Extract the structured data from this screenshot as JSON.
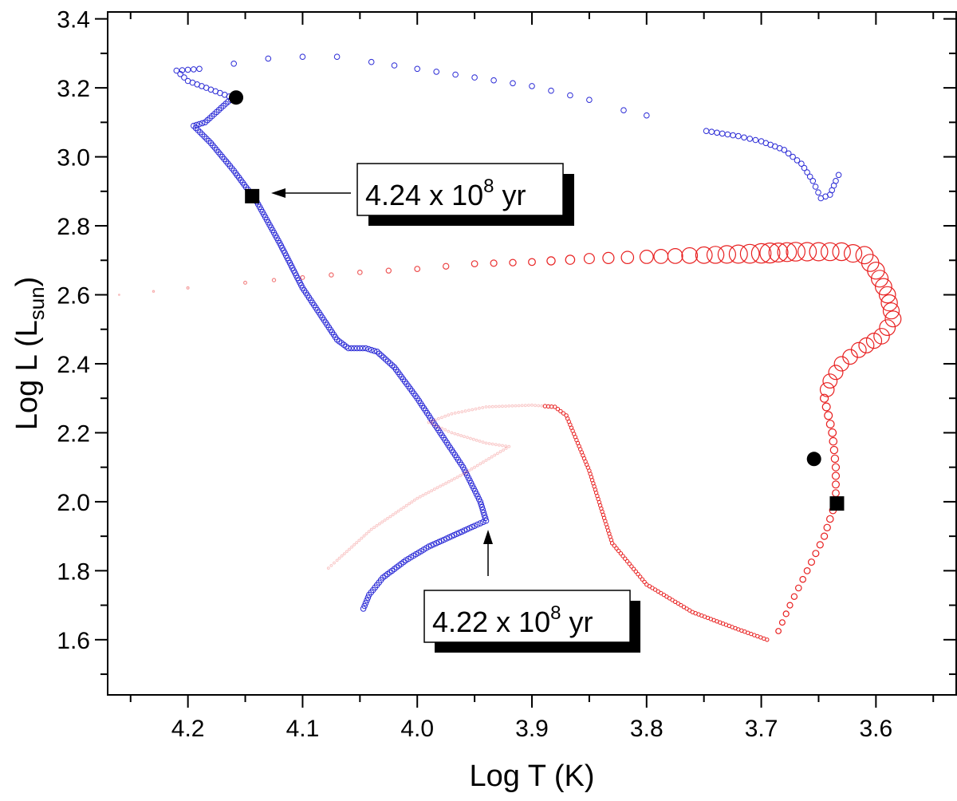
{
  "chart_data": {
    "type": "scatter",
    "title": "",
    "xlabel": "Log T (K)",
    "ylabel_main": "Log L (L",
    "ylabel_sub": "sun",
    "ylabel_close": ")",
    "xlim": [
      4.27,
      3.53
    ],
    "ylim": [
      1.44,
      3.42
    ],
    "x_ticks": [
      4.2,
      4.1,
      4.0,
      3.9,
      3.8,
      3.7,
      3.6
    ],
    "x_tick_labels": [
      "4.2",
      "4.1",
      "4.0",
      "3.9",
      "3.8",
      "3.7",
      "3.6"
    ],
    "y_ticks": [
      1.6,
      1.8,
      2.0,
      2.2,
      2.4,
      2.6,
      2.8,
      3.0,
      3.2,
      3.4
    ],
    "y_tick_labels": [
      "1.6",
      "1.8",
      "2.0",
      "2.2",
      "2.4",
      "2.6",
      "2.8",
      "3.0",
      "3.2",
      "3.4"
    ],
    "grid": false,
    "series": [
      {
        "name": "blue-track",
        "color": "#2b2bd6",
        "marker": "open-circle",
        "segments": [
          [
            [
              4.047,
              1.69
            ],
            [
              4.042,
              1.73
            ],
            [
              4.03,
              1.78
            ],
            [
              4.01,
              1.83
            ],
            [
              3.99,
              1.87
            ],
            [
              3.97,
              1.9
            ],
            [
              3.95,
              1.93
            ],
            [
              3.94,
              1.945
            ]
          ],
          [
            [
              3.94,
              1.945
            ],
            [
              3.945,
              2.0
            ],
            [
              3.96,
              2.1
            ],
            [
              3.98,
              2.2
            ],
            [
              4.0,
              2.3
            ],
            [
              4.02,
              2.39
            ],
            [
              4.035,
              2.435
            ],
            [
              4.045,
              2.445
            ],
            [
              4.06,
              2.445
            ],
            [
              4.07,
              2.47
            ],
            [
              4.08,
              2.52
            ],
            [
              4.1,
              2.62
            ],
            [
              4.12,
              2.75
            ],
            [
              4.14,
              2.87
            ],
            [
              4.16,
              2.96
            ],
            [
              4.18,
              3.04
            ],
            [
              4.195,
              3.09
            ],
            [
              4.185,
              3.1
            ],
            [
              4.175,
              3.13
            ],
            [
              4.165,
              3.16
            ],
            [
              4.16,
              3.17
            ]
          ],
          [
            [
              4.16,
              3.17
            ],
            [
              4.18,
              3.195
            ],
            [
              4.2,
              3.22
            ],
            [
              4.21,
              3.25
            ],
            [
              4.19,
              3.255
            ],
            [
              4.16,
              3.27
            ],
            [
              4.13,
              3.285
            ],
            [
              4.1,
              3.29
            ],
            [
              4.07,
              3.29
            ],
            [
              4.04,
              3.275
            ],
            [
              4.0,
              3.255
            ],
            [
              3.95,
              3.23
            ],
            [
              3.9,
              3.205
            ],
            [
              3.85,
              3.165
            ],
            [
              3.82,
              3.135
            ],
            [
              3.78,
              3.105
            ]
          ],
          [
            [
              3.748,
              3.075
            ],
            [
              3.72,
              3.06
            ],
            [
              3.7,
              3.045
            ],
            [
              3.68,
              3.02
            ],
            [
              3.665,
              2.98
            ],
            [
              3.655,
              2.93
            ],
            [
              3.648,
              2.88
            ],
            [
              3.64,
              2.89
            ],
            [
              3.635,
              2.93
            ],
            [
              3.63,
              2.965
            ]
          ]
        ]
      },
      {
        "name": "red-track",
        "color": "#e82020",
        "marker": "open-circle",
        "segments": [
          [
            [
              4.26,
              2.6
            ],
            [
              4.2,
              2.62
            ],
            [
              4.15,
              2.635
            ],
            [
              4.1,
              2.65
            ],
            [
              4.05,
              2.665
            ],
            [
              4.0,
              2.675
            ],
            [
              3.95,
              2.69
            ],
            [
              3.9,
              2.695
            ],
            [
              3.85,
              2.705
            ],
            [
              3.8,
              2.71
            ],
            [
              3.75,
              2.715
            ],
            [
              3.7,
              2.72
            ],
            [
              3.67,
              2.725
            ],
            [
              3.65,
              2.725
            ],
            [
              3.63,
              2.725
            ],
            [
              3.61,
              2.715
            ],
            [
              3.6,
              2.67
            ],
            [
              3.59,
              2.6
            ],
            [
              3.585,
              2.53
            ],
            [
              3.595,
              2.48
            ],
            [
              3.615,
              2.44
            ],
            [
              3.63,
              2.4
            ],
            [
              3.64,
              2.35
            ],
            [
              3.645,
              2.3
            ],
            [
              3.638,
              2.2
            ],
            [
              3.635,
              2.1
            ],
            [
              3.635,
              2.0
            ],
            [
              3.645,
              1.9
            ],
            [
              3.66,
              1.8
            ],
            [
              3.675,
              1.7
            ],
            [
              3.685,
              1.625
            ],
            [
              3.695,
              1.6
            ]
          ],
          [
            [
              3.695,
              1.6
            ],
            [
              3.72,
              1.63
            ],
            [
              3.76,
              1.68
            ],
            [
              3.8,
              1.76
            ],
            [
              3.83,
              1.88
            ],
            [
              3.85,
              2.09
            ],
            [
              3.87,
              2.25
            ],
            [
              3.88,
              2.275
            ],
            [
              3.9,
              2.28
            ],
            [
              3.94,
              2.275
            ],
            [
              3.97,
              2.255
            ],
            [
              3.99,
              2.23
            ],
            [
              3.97,
              2.2
            ],
            [
              3.94,
              2.17
            ],
            [
              3.92,
              2.16
            ],
            [
              3.93,
              2.14
            ],
            [
              3.96,
              2.08
            ],
            [
              4.0,
              2.01
            ],
            [
              4.04,
              1.92
            ],
            [
              4.07,
              1.83
            ],
            [
              4.08,
              1.8
            ]
          ]
        ]
      }
    ],
    "markers": [
      {
        "shape": "circle",
        "x": 4.158,
        "y": 3.172
      },
      {
        "shape": "square",
        "x": 4.144,
        "y": 2.886
      },
      {
        "shape": "circle",
        "x": 3.654,
        "y": 2.124
      },
      {
        "shape": "square",
        "x": 3.634,
        "y": 1.995
      }
    ],
    "annotations": [
      {
        "text_main": "4.24 x 10",
        "text_sup": "8",
        "text_end": " yr",
        "arrow_to": [
          4.14,
          2.886
        ]
      },
      {
        "text_main": "4.22 x 10",
        "text_sup": "8",
        "text_end": " yr",
        "arrow_to": [
          3.94,
          1.945
        ]
      }
    ]
  }
}
